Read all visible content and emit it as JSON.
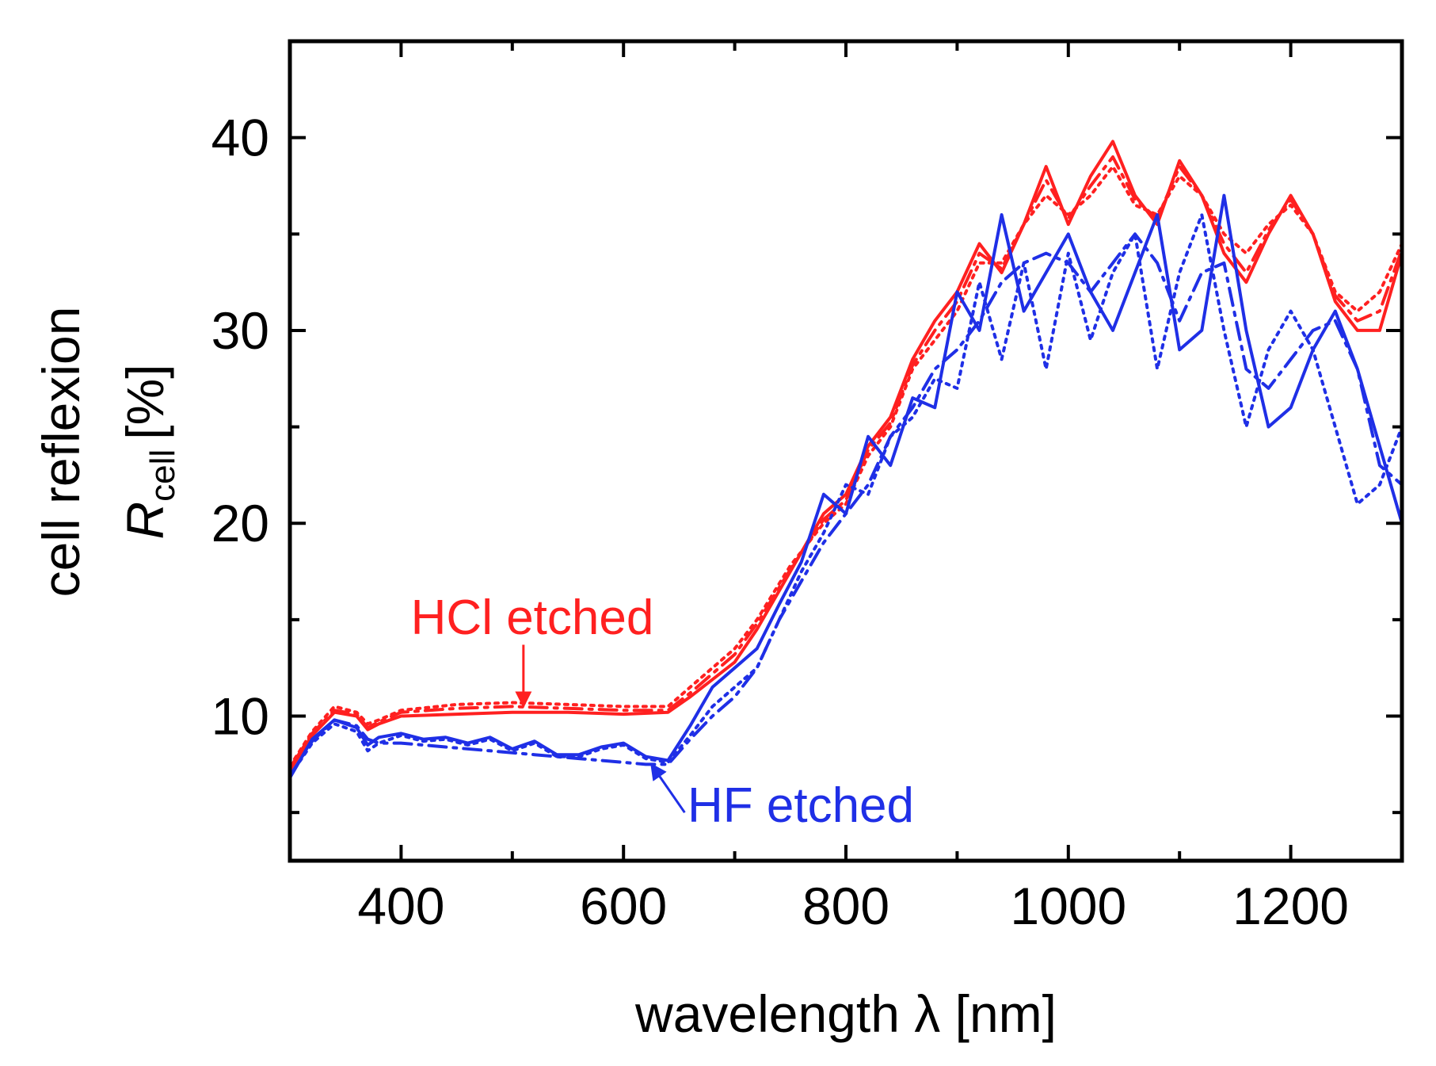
{
  "chart_data": {
    "type": "line",
    "xlabel": "wavelength λ [nm]",
    "ylabel_line1": "cell reflexion",
    "ylabel_symbol": "R",
    "ylabel_subscript": "cell",
    "ylabel_unit": "[%]",
    "xlim": [
      300,
      1300
    ],
    "ylim": [
      2.5,
      45
    ],
    "x_ticks": [
      400,
      600,
      800,
      1000,
      1200
    ],
    "y_ticks": [
      10,
      20,
      30,
      40
    ],
    "x_minor_ticks": [
      500,
      700,
      900,
      1100
    ],
    "y_minor_ticks": [
      5,
      15,
      25,
      35
    ],
    "grid": false,
    "colors": {
      "hcl": "#ff2020",
      "hf": "#1f2fe6",
      "axis": "#000000"
    },
    "annotations": [
      {
        "text": "HCl etched",
        "color": "#ff2020",
        "arrow_from": [
          510,
          13.7
        ],
        "arrow_to": [
          510,
          10.5
        ]
      },
      {
        "text": "HF etched",
        "color": "#1f2fe6",
        "arrow_from": [
          655,
          5.0
        ],
        "arrow_to": [
          625,
          7.5
        ]
      }
    ],
    "series": [
      {
        "group": "HCl etched",
        "style": "solid",
        "color": "#ff2020",
        "x": [
          300,
          320,
          340,
          360,
          370,
          380,
          400,
          450,
          500,
          550,
          600,
          640,
          660,
          700,
          720,
          750,
          780,
          800,
          820,
          840,
          860,
          880,
          900,
          920,
          940,
          960,
          980,
          1000,
          1020,
          1040,
          1060,
          1080,
          1100,
          1120,
          1140,
          1160,
          1180,
          1200,
          1220,
          1240,
          1260,
          1280,
          1300
        ],
        "y": [
          7.2,
          9.0,
          10.2,
          10.0,
          9.3,
          9.6,
          10.0,
          10.1,
          10.2,
          10.2,
          10.1,
          10.2,
          11.0,
          12.8,
          14.5,
          17.5,
          20.5,
          21.5,
          24.0,
          25.5,
          28.5,
          30.5,
          32.0,
          34.5,
          33.0,
          35.5,
          38.5,
          35.5,
          38.0,
          39.8,
          37.0,
          35.5,
          38.8,
          37.0,
          34.0,
          32.5,
          35.0,
          37.0,
          35.0,
          31.5,
          30.0,
          30.0,
          34.0
        ]
      },
      {
        "group": "HCl etched",
        "style": "dotted",
        "color": "#ff2020",
        "x": [
          300,
          320,
          340,
          360,
          370,
          380,
          400,
          450,
          500,
          550,
          600,
          640,
          660,
          700,
          720,
          750,
          780,
          800,
          820,
          840,
          860,
          880,
          900,
          920,
          940,
          960,
          980,
          1000,
          1020,
          1040,
          1060,
          1080,
          1100,
          1120,
          1140,
          1160,
          1180,
          1200,
          1220,
          1240,
          1260,
          1280,
          1300
        ],
        "y": [
          7.4,
          9.2,
          10.5,
          10.2,
          9.6,
          9.8,
          10.3,
          10.6,
          10.7,
          10.6,
          10.5,
          10.5,
          11.5,
          13.5,
          15.0,
          17.8,
          20.0,
          21.0,
          23.5,
          25.0,
          28.0,
          29.5,
          31.0,
          33.5,
          33.5,
          35.5,
          37.0,
          36.0,
          37.0,
          38.5,
          36.5,
          36.0,
          38.0,
          37.0,
          35.0,
          34.0,
          35.5,
          36.5,
          35.0,
          32.0,
          31.0,
          32.0,
          34.5
        ]
      },
      {
        "group": "HCl etched",
        "style": "dashdot",
        "color": "#ff2020",
        "x": [
          300,
          320,
          340,
          360,
          370,
          380,
          400,
          450,
          500,
          550,
          600,
          640,
          660,
          700,
          720,
          750,
          780,
          800,
          820,
          840,
          860,
          880,
          900,
          920,
          940,
          960,
          980,
          1000,
          1020,
          1040,
          1060,
          1080,
          1100,
          1120,
          1140,
          1160,
          1180,
          1200,
          1220,
          1240,
          1260,
          1280,
          1300
        ],
        "y": [
          7.3,
          9.1,
          10.3,
          10.1,
          9.4,
          9.7,
          10.2,
          10.4,
          10.5,
          10.4,
          10.3,
          10.3,
          11.2,
          13.2,
          14.8,
          17.6,
          20.2,
          21.2,
          23.8,
          25.2,
          28.2,
          30.0,
          31.5,
          34.0,
          33.2,
          35.5,
          37.8,
          35.8,
          37.5,
          39.0,
          36.8,
          35.8,
          38.5,
          37.0,
          34.5,
          33.0,
          35.2,
          36.8,
          35.0,
          31.8,
          30.5,
          31.0,
          34.2
        ]
      },
      {
        "group": "HF etched",
        "style": "solid",
        "color": "#1f2fe6",
        "x": [
          300,
          320,
          340,
          360,
          370,
          380,
          400,
          420,
          440,
          460,
          480,
          500,
          520,
          540,
          560,
          580,
          600,
          620,
          640,
          660,
          680,
          700,
          720,
          740,
          760,
          780,
          800,
          820,
          840,
          860,
          880,
          900,
          920,
          940,
          960,
          980,
          1000,
          1020,
          1040,
          1060,
          1080,
          1100,
          1120,
          1140,
          1160,
          1180,
          1200,
          1220,
          1240,
          1260,
          1280,
          1300
        ],
        "y": [
          6.8,
          8.8,
          9.8,
          9.4,
          8.5,
          8.9,
          9.1,
          8.8,
          8.9,
          8.6,
          8.9,
          8.3,
          8.7,
          8.0,
          8.0,
          8.4,
          8.6,
          7.9,
          7.7,
          9.5,
          11.5,
          12.5,
          13.5,
          15.8,
          18.0,
          21.5,
          20.5,
          24.5,
          23.0,
          26.5,
          26.0,
          32.0,
          30.0,
          36.0,
          31.0,
          33.0,
          35.0,
          32.0,
          30.0,
          33.0,
          36.0,
          29.0,
          30.0,
          37.0,
          30.0,
          25.0,
          26.0,
          29.0,
          31.0,
          28.0,
          24.0,
          20.0
        ]
      },
      {
        "group": "HF etched",
        "style": "dotted",
        "color": "#1f2fe6",
        "x": [
          300,
          320,
          340,
          360,
          370,
          380,
          400,
          420,
          440,
          460,
          480,
          500,
          520,
          540,
          560,
          580,
          600,
          620,
          640,
          660,
          680,
          700,
          720,
          740,
          760,
          780,
          800,
          820,
          840,
          860,
          880,
          900,
          920,
          940,
          960,
          980,
          1000,
          1020,
          1040,
          1060,
          1080,
          1100,
          1120,
          1140,
          1160,
          1180,
          1200,
          1220,
          1240,
          1260,
          1280,
          1300
        ],
        "y": [
          6.9,
          8.6,
          9.6,
          9.2,
          8.2,
          8.6,
          9.0,
          8.7,
          8.8,
          8.5,
          8.8,
          8.2,
          8.6,
          7.9,
          7.9,
          8.3,
          8.5,
          7.8,
          7.6,
          9.0,
          10.5,
          11.5,
          12.5,
          15.0,
          17.5,
          19.5,
          22.0,
          21.5,
          24.5,
          25.5,
          27.5,
          27.0,
          32.5,
          28.5,
          33.5,
          28.0,
          34.0,
          29.5,
          33.0,
          35.0,
          28.0,
          33.0,
          36.0,
          30.0,
          25.0,
          29.0,
          31.0,
          29.0,
          25.0,
          21.0,
          22.0,
          25.0
        ]
      },
      {
        "group": "HF etched",
        "style": "dashdot",
        "color": "#1f2fe6",
        "x": [
          300,
          320,
          340,
          360,
          370,
          380,
          400,
          440,
          480,
          520,
          560,
          600,
          620,
          640,
          660,
          680,
          700,
          720,
          740,
          760,
          780,
          800,
          820,
          840,
          860,
          880,
          900,
          920,
          940,
          960,
          980,
          1000,
          1020,
          1040,
          1060,
          1080,
          1100,
          1120,
          1140,
          1160,
          1180,
          1200,
          1220,
          1240,
          1260,
          1280,
          1300
        ],
        "y": [
          6.9,
          8.7,
          9.8,
          9.5,
          8.8,
          8.6,
          8.6,
          8.4,
          8.2,
          8.0,
          7.8,
          7.6,
          7.5,
          7.5,
          8.8,
          10.0,
          11.0,
          12.5,
          15.0,
          17.0,
          19.0,
          20.5,
          22.0,
          24.5,
          26.0,
          28.0,
          29.0,
          30.5,
          32.5,
          33.5,
          34.0,
          33.5,
          32.0,
          33.5,
          35.0,
          33.5,
          30.5,
          33.0,
          33.5,
          28.0,
          27.0,
          28.5,
          30.0,
          30.5,
          28.0,
          23.0,
          22.0
        ]
      }
    ]
  }
}
